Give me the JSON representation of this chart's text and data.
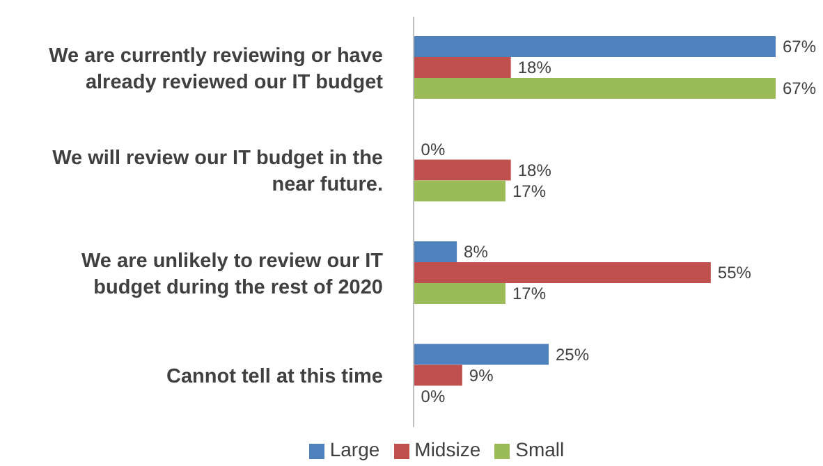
{
  "chart_data": {
    "type": "bar",
    "orientation": "horizontal",
    "relative": false,
    "categories": [
      "We are currently reviewing or have already reviewed our IT budget",
      "We will review our IT budget in the near future.",
      "We are unlikely to review our IT budget during the rest of 2020",
      "Cannot tell at this time"
    ],
    "series": [
      {
        "name": "Large",
        "color": "#4f81bd",
        "values": [
          67,
          0,
          8,
          25
        ],
        "value_labels": [
          "67%",
          "0%",
          "8%",
          "25%"
        ]
      },
      {
        "name": "Midsize",
        "color": "#c0504d",
        "values": [
          18,
          18,
          55,
          9
        ],
        "value_labels": [
          "18%",
          "18%",
          "55%",
          "9%"
        ]
      },
      {
        "name": "Small",
        "color": "#9bbb59",
        "values": [
          67,
          17,
          17,
          0
        ],
        "value_labels": [
          "67%",
          "17%",
          "17%",
          "0%"
        ]
      }
    ],
    "legend": "bottom"
  }
}
